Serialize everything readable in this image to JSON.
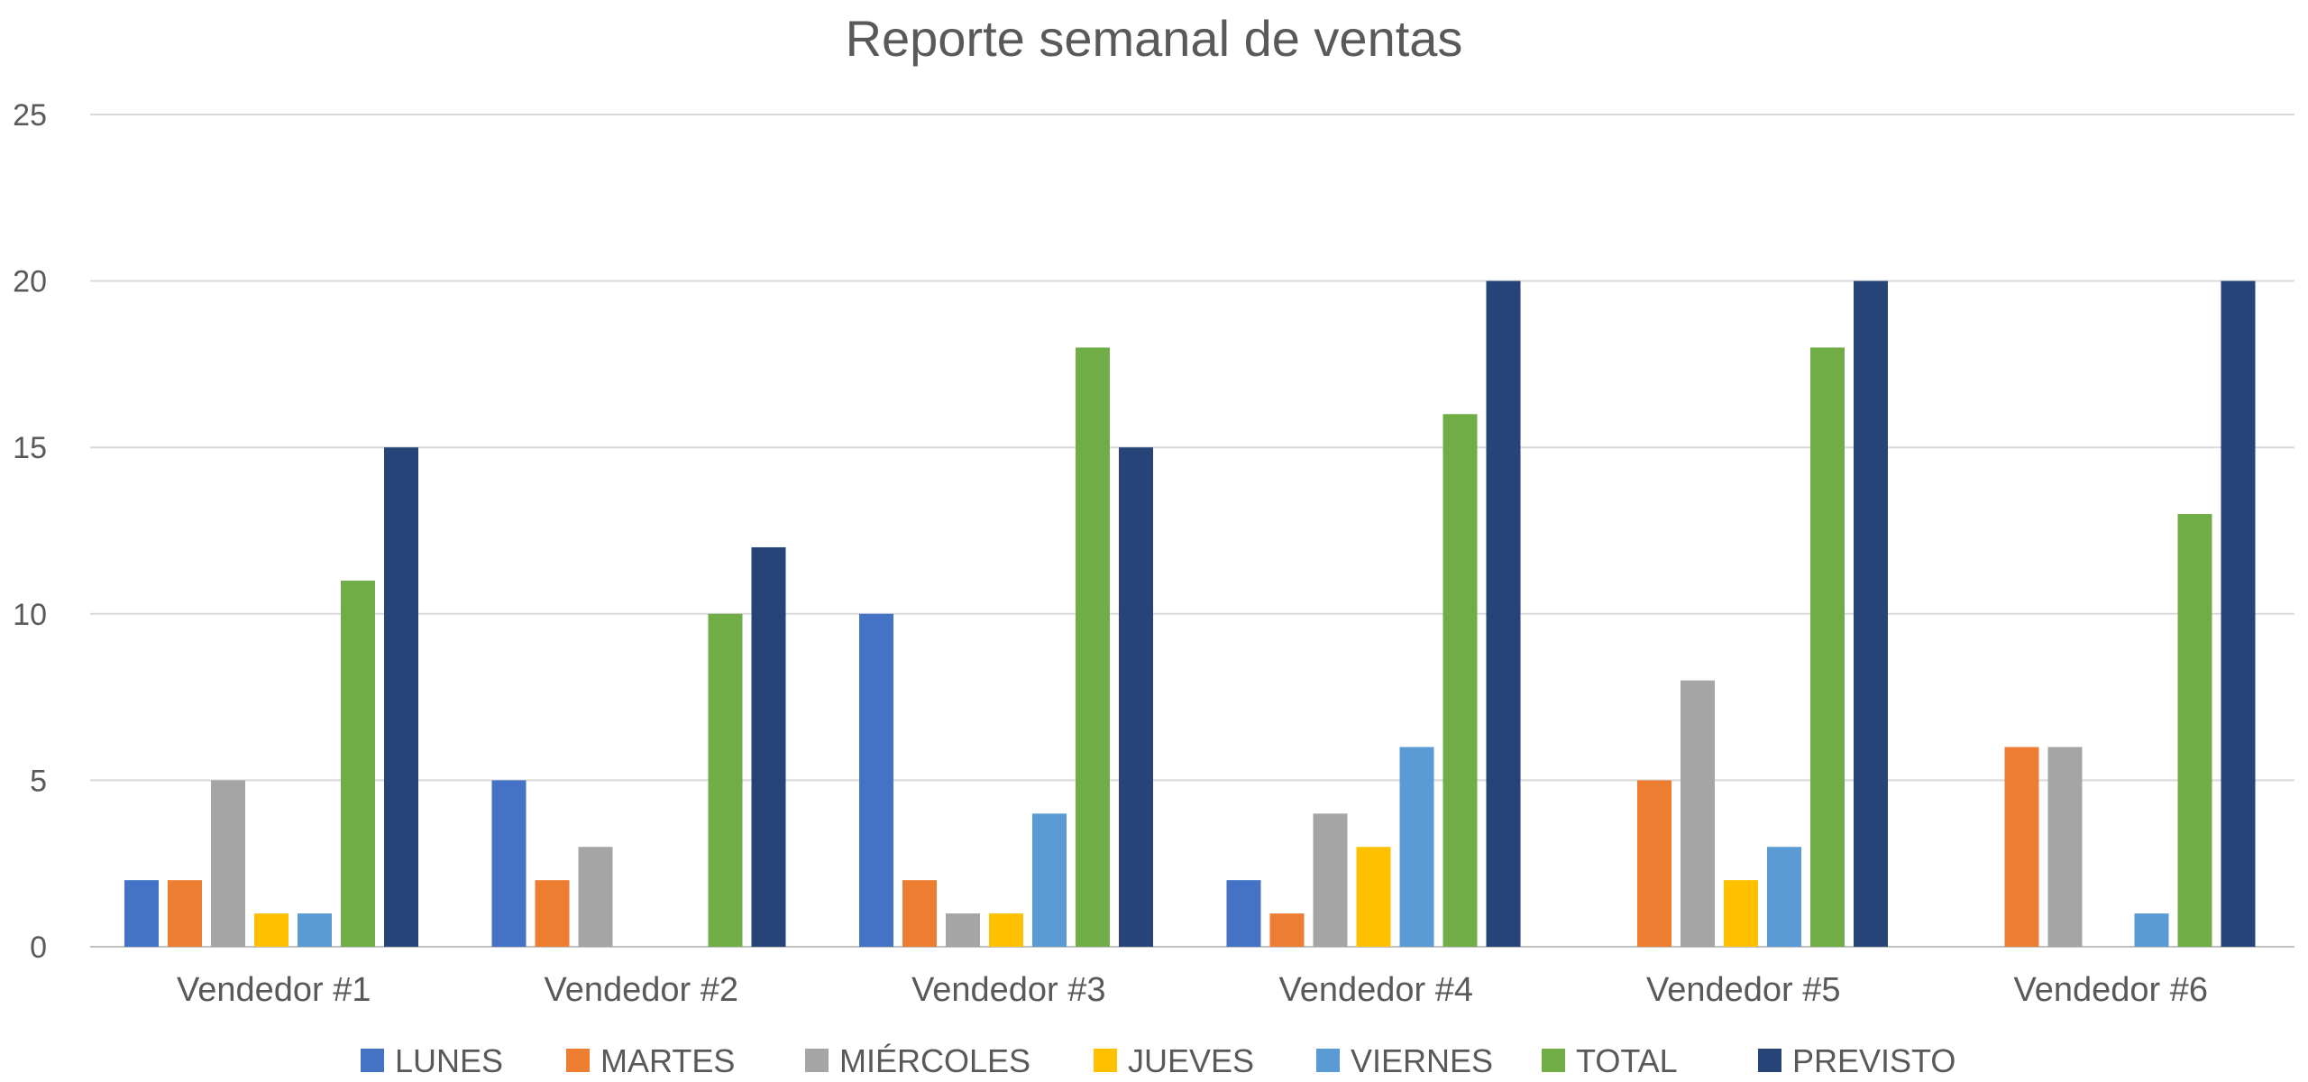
{
  "chart_data": {
    "type": "bar",
    "title": "Reporte semanal de ventas",
    "xlabel": "",
    "ylabel": "",
    "ylim": [
      0,
      25
    ],
    "yticks": [
      "0",
      "5",
      "10",
      "15",
      "20",
      "25"
    ],
    "grid": true,
    "legend_position": "bottom",
    "categories": [
      "Vendedor #1",
      "Vendedor #2",
      "Vendedor #3",
      "Vendedor #4",
      "Vendedor #5",
      "Vendedor #6"
    ],
    "series": [
      {
        "name": "LUNES",
        "color": "#4472C4",
        "values": [
          2,
          5,
          10,
          2,
          0,
          0
        ]
      },
      {
        "name": "MARTES",
        "color": "#ED7D31",
        "values": [
          2,
          2,
          2,
          1,
          5,
          6
        ]
      },
      {
        "name": "MIÉRCOLES",
        "color": "#A5A5A5",
        "values": [
          5,
          3,
          1,
          4,
          8,
          6
        ]
      },
      {
        "name": "JUEVES",
        "color": "#FFC000",
        "values": [
          1,
          0,
          1,
          3,
          2,
          0
        ]
      },
      {
        "name": "VIERNES",
        "color": "#5B9BD5",
        "values": [
          1,
          0,
          4,
          6,
          3,
          1
        ]
      },
      {
        "name": "TOTAL",
        "color": "#70AD47",
        "values": [
          11,
          10,
          18,
          16,
          18,
          13
        ]
      },
      {
        "name": "PREVISTO",
        "color": "#264478",
        "values": [
          15,
          12,
          15,
          20,
          20,
          20
        ]
      }
    ]
  }
}
